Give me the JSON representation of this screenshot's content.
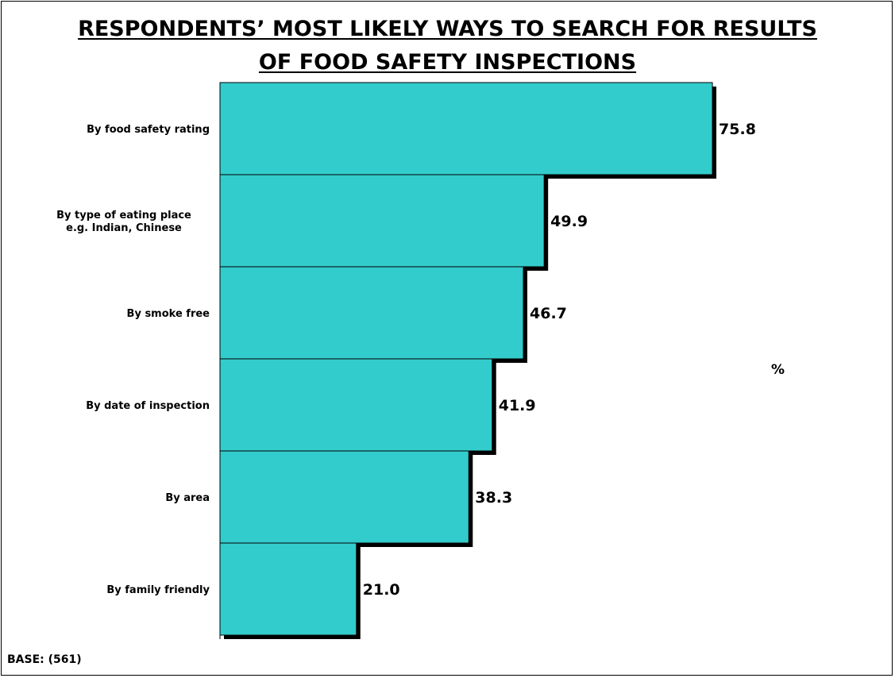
{
  "title": {
    "line1": "RESPONDENTS’ MOST LIKELY WAYS TO SEARCH FOR RESULTS",
    "line2": "OF FOOD SAFETY INSPECTIONS"
  },
  "unit_label": "%",
  "base_note": "BASE: (561)",
  "colors": {
    "bar": "#33CCCC",
    "shadow": "#000000",
    "outline": "#000000"
  },
  "chart_data": {
    "type": "bar",
    "orientation": "horizontal",
    "categories": [
      [
        "By food safety rating"
      ],
      [
        "By type of eating place",
        "e.g. Indian, Chinese"
      ],
      [
        "By smoke free"
      ],
      [
        "By date of inspection"
      ],
      [
        "By area"
      ],
      [
        "By family friendly"
      ]
    ],
    "values": [
      75.8,
      49.9,
      46.7,
      41.9,
      38.3,
      21.0
    ],
    "value_labels": [
      "75.8",
      "49.9",
      "46.7",
      "41.9",
      "38.3",
      "21.0"
    ],
    "xlim": [
      0,
      100
    ],
    "grid": false,
    "legend": "none"
  }
}
